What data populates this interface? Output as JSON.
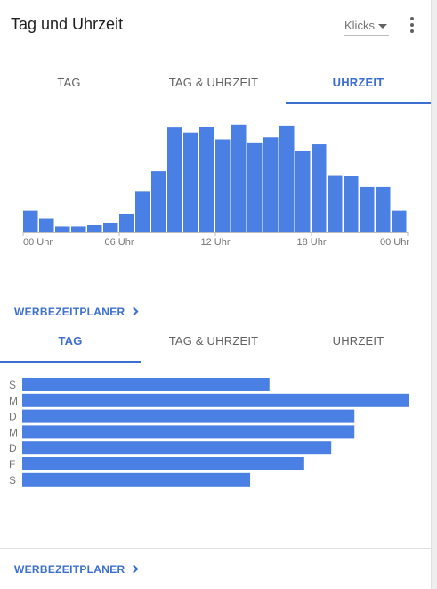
{
  "header": {
    "title": "Tag und Uhrzeit",
    "metric_selector": "Klicks"
  },
  "tabs_top": [
    {
      "label": "TAG",
      "active": false
    },
    {
      "label": "TAG & UHRZEIT",
      "active": false
    },
    {
      "label": "UHRZEIT",
      "active": true
    }
  ],
  "tabs_bottom": [
    {
      "label": "TAG",
      "active": true
    },
    {
      "label": "TAG & UHRZEIT",
      "active": false
    },
    {
      "label": "UHRZEIT",
      "active": false
    }
  ],
  "link_label": "WERBEZEITPLANER",
  "colors": {
    "accent": "#3c6fcf",
    "bar": "#4a7fe3"
  },
  "chart_data": [
    {
      "type": "bar",
      "orientation": "vertical",
      "title": "",
      "x_tick_labels": [
        "00 Uhr",
        "06 Uhr",
        "12 Uhr",
        "18 Uhr",
        "00 Uhr"
      ],
      "hours": [
        0,
        1,
        2,
        3,
        4,
        5,
        6,
        7,
        8,
        9,
        10,
        11,
        12,
        13,
        14,
        15,
        16,
        17,
        18,
        19,
        20,
        21,
        22,
        23
      ],
      "values": [
        21,
        13,
        5,
        5,
        7,
        9,
        18,
        41,
        61,
        105,
        100,
        106,
        93,
        108,
        90,
        95,
        107,
        81,
        88,
        57,
        56,
        45,
        45,
        21
      ],
      "ylim": [
        0,
        115
      ],
      "grid": false
    },
    {
      "type": "bar",
      "orientation": "horizontal",
      "title": "",
      "categories": [
        "S",
        "M",
        "D",
        "M",
        "D",
        "F",
        "S"
      ],
      "values": [
        64,
        100,
        86,
        86,
        80,
        73,
        59
      ],
      "xlim": [
        0,
        100
      ],
      "grid": false
    }
  ]
}
